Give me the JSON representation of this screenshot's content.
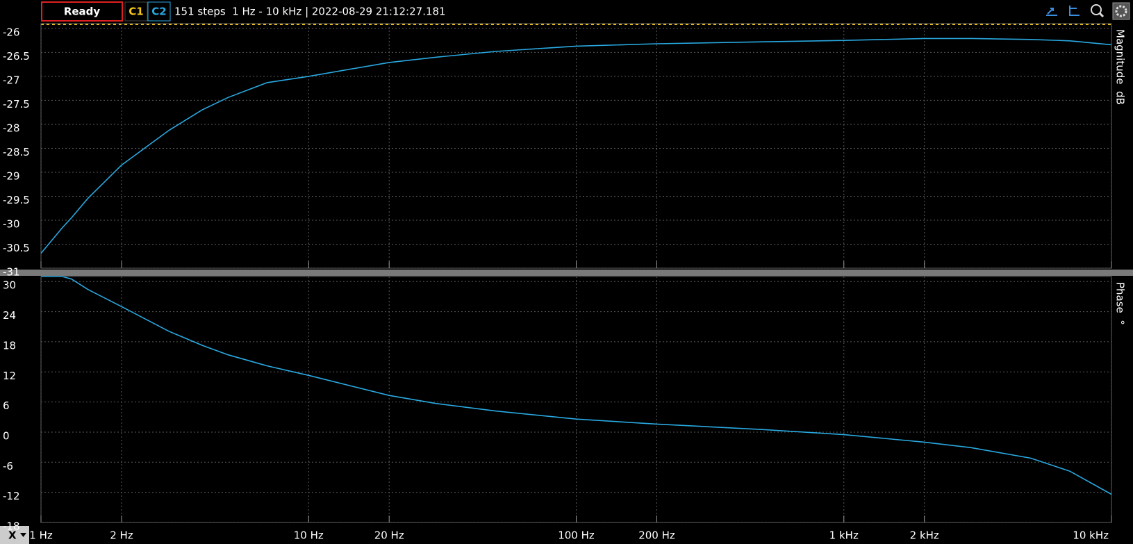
{
  "toolbar": {
    "status": "Ready",
    "c1": "C1",
    "info": "151 steps  1 Hz - 10 kHz | 2022-08-29 21:12:27.181",
    "x_button": "X"
  },
  "chart_data": [
    {
      "type": "line",
      "ylabel": "Magnitude  dB",
      "log_x": true,
      "xlim": [
        1,
        10000
      ],
      "x": [
        1,
        1.2,
        1.3,
        1.5,
        2,
        3,
        4,
        5,
        7,
        10,
        20,
        30,
        50,
        100,
        200,
        500,
        1000,
        2000,
        3000,
        5000,
        7000,
        10000
      ],
      "series": [
        {
          "name": "C2",
          "color": "#29a9e1",
          "values": [
            -30.69,
            -30.16,
            -29.95,
            -29.54,
            -28.85,
            -28.13,
            -27.7,
            -27.44,
            -27.13,
            -27.0,
            -26.71,
            -26.6,
            -26.48,
            -26.37,
            -26.32,
            -26.28,
            -26.25,
            -26.21,
            -26.21,
            -26.23,
            -26.26,
            -26.34
          ]
        }
      ],
      "ylim": [
        -31,
        -25.9
      ],
      "yticks": [
        -26,
        -26.5,
        -27,
        -27.5,
        -28,
        -28.5,
        -29,
        -29.5,
        -30,
        -30.5,
        -31
      ],
      "grid": true
    },
    {
      "type": "line",
      "ylabel": "Phase  °",
      "log_x": true,
      "xlim": [
        1,
        10000
      ],
      "x": [
        1,
        1.2,
        1.3,
        1.5,
        2,
        3,
        4,
        5,
        7,
        10,
        20,
        30,
        50,
        100,
        200,
        500,
        1000,
        2000,
        3000,
        5000,
        7000,
        10000
      ],
      "series": [
        {
          "color": "#29a9e1",
          "values": [
            31,
            31,
            30.5,
            28.4,
            25.0,
            20.1,
            17.3,
            15.4,
            13.2,
            11.3,
            7.3,
            5.7,
            4.2,
            2.6,
            1.6,
            0.5,
            -0.5,
            -2.0,
            -3.1,
            -5.2,
            -7.8,
            -12.4
          ]
        }
      ],
      "ylim": [
        -18,
        31
      ],
      "yticks": [
        30,
        24,
        18,
        12,
        6,
        0,
        -6,
        -12,
        -18
      ],
      "grid": true,
      "xticks": [
        {
          "value": 1,
          "label": "1 Hz"
        },
        {
          "value": 2,
          "label": "2 Hz"
        },
        {
          "value": 10,
          "label": "10 Hz"
        },
        {
          "value": 20,
          "label": "20 Hz"
        },
        {
          "value": 100,
          "label": "100 Hz"
        },
        {
          "value": 200,
          "label": "200 Hz"
        },
        {
          "value": 1000,
          "label": "1 kHz"
        },
        {
          "value": 2000,
          "label": "2 kHz"
        },
        {
          "value": 10000,
          "label": "10 kHz"
        }
      ]
    }
  ]
}
